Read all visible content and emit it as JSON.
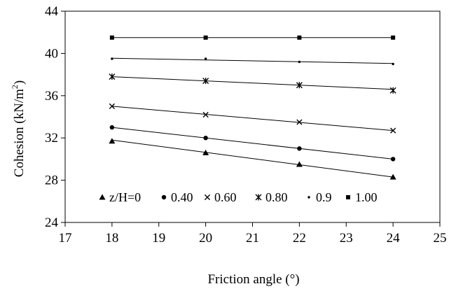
{
  "chart_data": {
    "type": "scatter",
    "title": "",
    "xlabel": "Friction angle (°)",
    "ylabel_main": "Cohesion (kN/m",
    "ylabel_sup": "2",
    "ylabel_end": ")",
    "xlim": [
      17,
      25
    ],
    "ylim": [
      24,
      44
    ],
    "xticks": [
      17,
      18,
      19,
      20,
      21,
      22,
      23,
      24,
      25
    ],
    "yticks": [
      24,
      28,
      32,
      36,
      40,
      44
    ],
    "grid": false,
    "legend_position": "bottom-inside",
    "series": [
      {
        "name": "z/H=0",
        "marker": "triangle",
        "x": [
          18,
          20,
          22,
          24
        ],
        "y": [
          31.7,
          30.6,
          29.5,
          28.3
        ],
        "fit": [
          31.8,
          28.3
        ]
      },
      {
        "name": "0.40",
        "marker": "circle",
        "x": [
          18,
          20,
          22,
          24
        ],
        "y": [
          33.0,
          32.0,
          31.0,
          30.0
        ],
        "fit": [
          33.0,
          30.0
        ]
      },
      {
        "name": "0.60",
        "marker": "x",
        "x": [
          18,
          20,
          22,
          24
        ],
        "y": [
          35.0,
          34.2,
          33.5,
          32.7
        ],
        "fit": [
          35.0,
          32.7
        ]
      },
      {
        "name": "0.80",
        "marker": "star",
        "x": [
          18,
          20,
          22,
          24
        ],
        "y": [
          37.8,
          37.4,
          37.0,
          36.5
        ],
        "fit": [
          37.8,
          36.6
        ]
      },
      {
        "name": "0.9",
        "marker": "dot",
        "x": [
          18,
          20,
          22,
          24
        ],
        "y": [
          39.5,
          39.5,
          39.2,
          39.0
        ],
        "fit": [
          39.55,
          39.05
        ]
      },
      {
        "name": "1.00",
        "marker": "square",
        "x": [
          18,
          20,
          22,
          24
        ],
        "y": [
          41.5,
          41.5,
          41.5,
          41.5
        ],
        "fit": [
          41.5,
          41.5
        ]
      }
    ]
  }
}
